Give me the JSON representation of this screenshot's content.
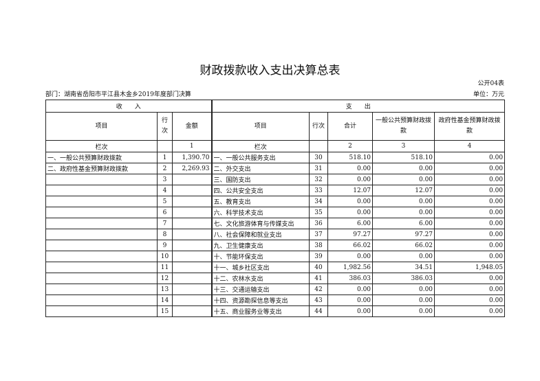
{
  "title": "财政拨款收入支出决算总表",
  "form_no": "公开04表",
  "department": "部门：湖南省岳阳市平江县木金乡2019年度部门决算",
  "unit": "单位：万元",
  "header": {
    "income": "收　　入",
    "expense": "支　　出",
    "item": "项目",
    "row_no": "行次",
    "amount": "金额",
    "exp_item": "项目",
    "exp_row_no": "行次",
    "total": "合计",
    "general": "一般公共预算财政拨款",
    "fund": "政府性基金预算财政拨款"
  },
  "column_index": {
    "label": "栏次",
    "income_amount": "1",
    "exp_label": "栏次",
    "total": "2",
    "general": "3",
    "fund": "4"
  },
  "rows": [
    {
      "in_item": "一、一般公共预算财政拨款",
      "in_no": "1",
      "in_amt": "1,390.70",
      "ex_item": "一、一般公共服务支出",
      "ex_no": "30",
      "total": "518.10",
      "general": "518.10",
      "fund": "0.00"
    },
    {
      "in_item": "二、政府性基金预算财政拨款",
      "in_no": "2",
      "in_amt": "2,269.93",
      "ex_item": "二、外交支出",
      "ex_no": "31",
      "total": "0.00",
      "general": "0.00",
      "fund": "0.00"
    },
    {
      "in_item": "",
      "in_no": "3",
      "in_amt": "",
      "ex_item": "三、国防支出",
      "ex_no": "32",
      "total": "0.00",
      "general": "0.00",
      "fund": "0.00"
    },
    {
      "in_item": "",
      "in_no": "4",
      "in_amt": "",
      "ex_item": "四、公共安全支出",
      "ex_no": "33",
      "total": "12.07",
      "general": "12.07",
      "fund": "0.00"
    },
    {
      "in_item": "",
      "in_no": "5",
      "in_amt": "",
      "ex_item": "五、教育支出",
      "ex_no": "34",
      "total": "0.00",
      "general": "0.00",
      "fund": "0.00"
    },
    {
      "in_item": "",
      "in_no": "6",
      "in_amt": "",
      "ex_item": "六、科学技术支出",
      "ex_no": "35",
      "total": "0.00",
      "general": "0.00",
      "fund": "0.00"
    },
    {
      "in_item": "",
      "in_no": "7",
      "in_amt": "",
      "ex_item": "七、文化旅游体育与传媒支出",
      "ex_no": "36",
      "total": "6.00",
      "general": "6.00",
      "fund": "0.00"
    },
    {
      "in_item": "",
      "in_no": "8",
      "in_amt": "",
      "ex_item": "八、社会保障和就业支出",
      "ex_no": "37",
      "total": "97.27",
      "general": "97.27",
      "fund": "0.00"
    },
    {
      "in_item": "",
      "in_no": "9",
      "in_amt": "",
      "ex_item": "九、卫生健康支出",
      "ex_no": "38",
      "total": "66.02",
      "general": "66.02",
      "fund": "0.00"
    },
    {
      "in_item": "",
      "in_no": "10",
      "in_amt": "",
      "ex_item": "十、节能环保支出",
      "ex_no": "39",
      "total": "0.00",
      "general": "0.00",
      "fund": "0.00"
    },
    {
      "in_item": "",
      "in_no": "11",
      "in_amt": "",
      "ex_item": "十一、城乡社区支出",
      "ex_no": "40",
      "total": "1,982.56",
      "general": "34.51",
      "fund": "1,948.05"
    },
    {
      "in_item": "",
      "in_no": "12",
      "in_amt": "",
      "ex_item": "十二、农林水支出",
      "ex_no": "41",
      "total": "386.03",
      "general": "386.03",
      "fund": "0.00"
    },
    {
      "in_item": "",
      "in_no": "13",
      "in_amt": "",
      "ex_item": "十三、交通运输支出",
      "ex_no": "42",
      "total": "0.00",
      "general": "0.00",
      "fund": "0.00"
    },
    {
      "in_item": "",
      "in_no": "14",
      "in_amt": "",
      "ex_item": "十四、资源勘探信息等支出",
      "ex_no": "43",
      "total": "0.00",
      "general": "0.00",
      "fund": "0.00"
    },
    {
      "in_item": "",
      "in_no": "15",
      "in_amt": "",
      "ex_item": "十五、商业服务业等支出",
      "ex_no": "44",
      "total": "0.00",
      "general": "0.00",
      "fund": "0.00"
    }
  ]
}
